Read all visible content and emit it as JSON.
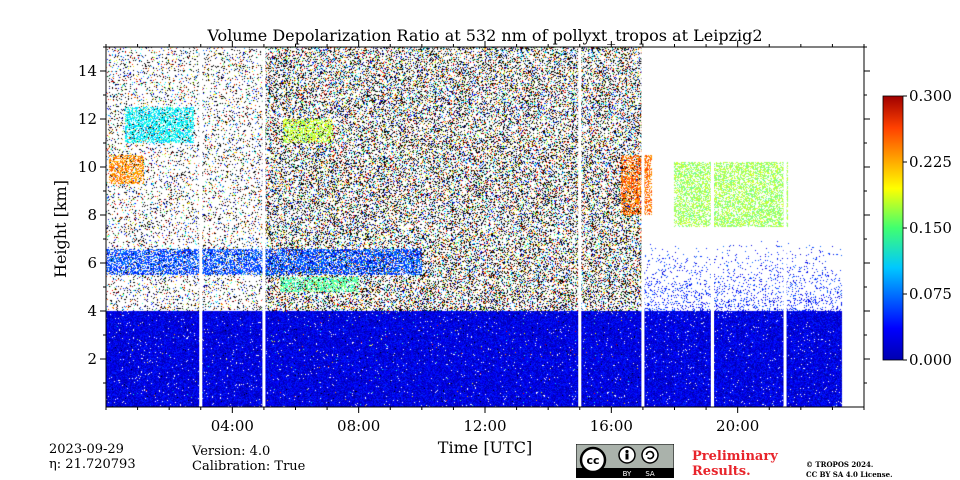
{
  "chart_data": {
    "type": "heatmap",
    "title": "Volume Depolarization Ratio at 532 nm of pollyxt_tropos at Leipzig2",
    "xlabel": "Time [UTC]",
    "ylabel": "Height [km]",
    "xlim_hours": [
      0,
      24
    ],
    "ylim_km": [
      0,
      15
    ],
    "x_ticks": [
      {
        "value": 4,
        "label": "04:00"
      },
      {
        "value": 8,
        "label": "08:00"
      },
      {
        "value": 12,
        "label": "12:00"
      },
      {
        "value": 16,
        "label": "16:00"
      },
      {
        "value": 20,
        "label": "20:00"
      }
    ],
    "y_ticks": [
      {
        "value": 2,
        "label": "2"
      },
      {
        "value": 4,
        "label": "4"
      },
      {
        "value": 6,
        "label": "6"
      },
      {
        "value": 8,
        "label": "8"
      },
      {
        "value": 10,
        "label": "10"
      },
      {
        "value": 12,
        "label": "12"
      },
      {
        "value": 14,
        "label": "14"
      }
    ],
    "colorbar": {
      "min": 0.0,
      "max": 0.3,
      "colormap": "jet",
      "ticks": [
        {
          "value": 0.0,
          "label": "0.000"
        },
        {
          "value": 0.075,
          "label": "0.075"
        },
        {
          "value": 0.15,
          "label": "0.150"
        },
        {
          "value": 0.225,
          "label": "0.225"
        },
        {
          "value": 0.3,
          "label": "0.300"
        }
      ]
    },
    "data_gaps_hours": [
      3.0,
      5.0,
      15.0,
      17.0,
      19.2,
      21.5
    ],
    "features": [
      {
        "name": "boundary layer",
        "t_start": 0,
        "t_end": 23.3,
        "h_top_km": 4.0,
        "depol": 0.03
      },
      {
        "name": "aerosol layer",
        "t_start": 0,
        "t_end": 10,
        "h_bottom_km": 5.5,
        "h_top_km": 6.6,
        "depol": 0.06
      },
      {
        "name": "elevated layer",
        "t_start": 5.5,
        "t_end": 8.0,
        "h_bottom_km": 4.8,
        "h_top_km": 5.4,
        "depol": 0.14
      },
      {
        "name": "cirrus",
        "t_start": 0.1,
        "t_end": 1.2,
        "h_bottom_km": 9.3,
        "h_top_km": 10.5,
        "depol": 0.22
      },
      {
        "name": "cirrus",
        "t_start": 0.6,
        "t_end": 2.8,
        "h_bottom_km": 11.0,
        "h_top_km": 12.5,
        "depol": 0.11
      },
      {
        "name": "cirrus",
        "t_start": 5.6,
        "t_end": 7.2,
        "h_bottom_km": 11.0,
        "h_top_km": 12.0,
        "depol": 0.17
      },
      {
        "name": "cirrus",
        "t_start": 16.3,
        "t_end": 17.3,
        "h_bottom_km": 8.0,
        "h_top_km": 10.5,
        "depol": 0.23
      },
      {
        "name": "cirrus",
        "t_start": 18.0,
        "t_end": 21.6,
        "h_bottom_km": 7.5,
        "h_top_km": 10.2,
        "depol": 0.16
      }
    ]
  },
  "info": {
    "date": "2023-09-29",
    "eta": "η: 21.720793",
    "version": "Version: 4.0",
    "calibration": "Calibration: True"
  },
  "badge": {
    "by": "BY",
    "sa": "SA",
    "preliminary_line1": "Preliminary",
    "preliminary_line2": "Results."
  },
  "license": {
    "line1": "© TROPOS 2024.",
    "line2": "CC BY SA 4.0 License."
  }
}
